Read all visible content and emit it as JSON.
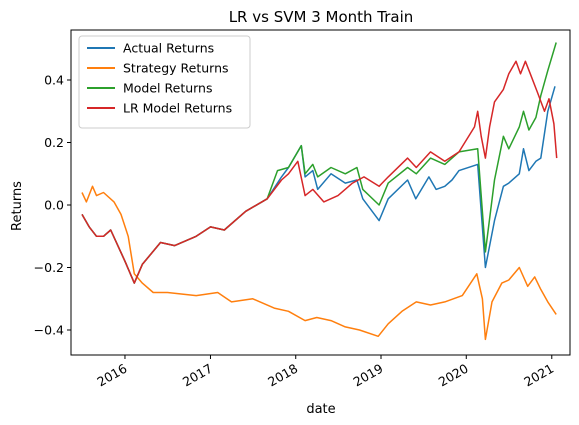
{
  "chart_data": {
    "type": "line",
    "title": "LR vs SVM 3 Month Train",
    "xlabel": "date",
    "ylabel": "Returns",
    "xlim": [
      "2015-05-15",
      "2021-03-20"
    ],
    "ylim": [
      -0.48,
      0.56
    ],
    "x_ticks": [
      "2016",
      "2017",
      "2018",
      "2019",
      "2020",
      "2021"
    ],
    "y_ticks": [
      -0.4,
      -0.2,
      0.0,
      0.2,
      0.4
    ],
    "y_tick_labels": [
      "−0.4",
      "−0.2",
      "0.0",
      "0.2",
      "0.4"
    ],
    "grid": false,
    "legend": "upper-left",
    "series": [
      {
        "name": "Actual Returns",
        "color": "#1f77b4",
        "points": [
          [
            "2015-07-01",
            -0.03
          ],
          [
            "2015-08-01",
            -0.07
          ],
          [
            "2015-09-01",
            -0.1
          ],
          [
            "2015-10-01",
            -0.1
          ],
          [
            "2015-11-01",
            -0.08
          ],
          [
            "2016-01-01",
            -0.18
          ],
          [
            "2016-02-10",
            -0.25
          ],
          [
            "2016-03-15",
            -0.19
          ],
          [
            "2016-06-01",
            -0.12
          ],
          [
            "2016-08-01",
            -0.13
          ],
          [
            "2016-11-01",
            -0.1
          ],
          [
            "2017-01-01",
            -0.07
          ],
          [
            "2017-03-01",
            -0.08
          ],
          [
            "2017-06-01",
            -0.02
          ],
          [
            "2017-09-01",
            0.02
          ],
          [
            "2017-11-01",
            0.09
          ],
          [
            "2017-12-01",
            0.12
          ],
          [
            "2018-01-25",
            0.19
          ],
          [
            "2018-02-10",
            0.09
          ],
          [
            "2018-03-15",
            0.11
          ],
          [
            "2018-04-05",
            0.05
          ],
          [
            "2018-06-01",
            0.1
          ],
          [
            "2018-08-01",
            0.07
          ],
          [
            "2018-09-20",
            0.08
          ],
          [
            "2018-10-15",
            0.02
          ],
          [
            "2018-12-24",
            -0.05
          ],
          [
            "2019-02-01",
            0.02
          ],
          [
            "2019-04-25",
            0.08
          ],
          [
            "2019-05-30",
            0.02
          ],
          [
            "2019-07-25",
            0.09
          ],
          [
            "2019-08-25",
            0.05
          ],
          [
            "2019-10-01",
            0.06
          ],
          [
            "2019-11-01",
            0.08
          ],
          [
            "2019-12-01",
            0.11
          ],
          [
            "2020-02-19",
            0.13
          ],
          [
            "2020-03-23",
            -0.2
          ],
          [
            "2020-05-01",
            -0.05
          ],
          [
            "2020-06-08",
            0.06
          ],
          [
            "2020-07-01",
            0.07
          ],
          [
            "2020-08-15",
            0.1
          ],
          [
            "2020-09-02",
            0.18
          ],
          [
            "2020-09-25",
            0.11
          ],
          [
            "2020-10-25",
            0.14
          ],
          [
            "2020-11-15",
            0.15
          ],
          [
            "2020-12-15",
            0.3
          ],
          [
            "2021-01-15",
            0.38
          ]
        ]
      },
      {
        "name": "Strategy Returns",
        "color": "#ff7f0e",
        "points": [
          [
            "2015-07-01",
            0.04
          ],
          [
            "2015-07-20",
            0.01
          ],
          [
            "2015-08-15",
            0.06
          ],
          [
            "2015-09-01",
            0.03
          ],
          [
            "2015-10-01",
            0.04
          ],
          [
            "2015-11-15",
            0.01
          ],
          [
            "2015-12-15",
            -0.03
          ],
          [
            "2016-01-15",
            -0.1
          ],
          [
            "2016-02-10",
            -0.22
          ],
          [
            "2016-03-15",
            -0.25
          ],
          [
            "2016-05-01",
            -0.28
          ],
          [
            "2016-07-01",
            -0.28
          ],
          [
            "2016-11-01",
            -0.29
          ],
          [
            "2017-02-01",
            -0.28
          ],
          [
            "2017-04-01",
            -0.31
          ],
          [
            "2017-07-01",
            -0.3
          ],
          [
            "2017-10-01",
            -0.33
          ],
          [
            "2017-12-01",
            -0.34
          ],
          [
            "2018-02-10",
            -0.37
          ],
          [
            "2018-04-01",
            -0.36
          ],
          [
            "2018-06-01",
            -0.37
          ],
          [
            "2018-08-01",
            -0.39
          ],
          [
            "2018-10-01",
            -0.4
          ],
          [
            "2018-12-20",
            -0.42
          ],
          [
            "2019-02-01",
            -0.38
          ],
          [
            "2019-04-01",
            -0.34
          ],
          [
            "2019-06-01",
            -0.31
          ],
          [
            "2019-08-01",
            -0.32
          ],
          [
            "2019-10-01",
            -0.31
          ],
          [
            "2019-12-15",
            -0.29
          ],
          [
            "2020-02-15",
            -0.22
          ],
          [
            "2020-03-10",
            -0.3
          ],
          [
            "2020-03-23",
            -0.43
          ],
          [
            "2020-04-20",
            -0.31
          ],
          [
            "2020-06-01",
            -0.25
          ],
          [
            "2020-07-01",
            -0.24
          ],
          [
            "2020-08-15",
            -0.2
          ],
          [
            "2020-09-20",
            -0.26
          ],
          [
            "2020-10-20",
            -0.23
          ],
          [
            "2020-11-15",
            -0.27
          ],
          [
            "2020-12-15",
            -0.31
          ],
          [
            "2021-01-20",
            -0.35
          ]
        ]
      },
      {
        "name": "Model Returns",
        "color": "#2ca02c",
        "points": [
          [
            "2015-07-01",
            -0.03
          ],
          [
            "2015-08-01",
            -0.07
          ],
          [
            "2015-09-01",
            -0.1
          ],
          [
            "2015-10-01",
            -0.1
          ],
          [
            "2015-11-01",
            -0.08
          ],
          [
            "2016-01-01",
            -0.18
          ],
          [
            "2016-02-10",
            -0.25
          ],
          [
            "2016-03-15",
            -0.19
          ],
          [
            "2016-06-01",
            -0.12
          ],
          [
            "2016-08-01",
            -0.13
          ],
          [
            "2016-11-01",
            -0.1
          ],
          [
            "2017-01-01",
            -0.07
          ],
          [
            "2017-03-01",
            -0.08
          ],
          [
            "2017-06-01",
            -0.02
          ],
          [
            "2017-09-01",
            0.02
          ],
          [
            "2017-10-15",
            0.11
          ],
          [
            "2017-12-01",
            0.12
          ],
          [
            "2018-01-25",
            0.19
          ],
          [
            "2018-02-10",
            0.1
          ],
          [
            "2018-03-15",
            0.13
          ],
          [
            "2018-04-05",
            0.09
          ],
          [
            "2018-06-01",
            0.12
          ],
          [
            "2018-08-01",
            0.1
          ],
          [
            "2018-09-20",
            0.12
          ],
          [
            "2018-10-15",
            0.05
          ],
          [
            "2018-12-24",
            0.0
          ],
          [
            "2019-02-01",
            0.07
          ],
          [
            "2019-04-25",
            0.12
          ],
          [
            "2019-06-01",
            0.1
          ],
          [
            "2019-08-01",
            0.15
          ],
          [
            "2019-10-01",
            0.13
          ],
          [
            "2019-12-01",
            0.17
          ],
          [
            "2020-02-19",
            0.18
          ],
          [
            "2020-03-23",
            -0.15
          ],
          [
            "2020-05-01",
            0.08
          ],
          [
            "2020-06-08",
            0.22
          ],
          [
            "2020-07-01",
            0.18
          ],
          [
            "2020-08-15",
            0.25
          ],
          [
            "2020-09-02",
            0.3
          ],
          [
            "2020-09-25",
            0.24
          ],
          [
            "2020-10-25",
            0.28
          ],
          [
            "2020-11-15",
            0.35
          ],
          [
            "2020-12-15",
            0.43
          ],
          [
            "2021-01-20",
            0.52
          ]
        ]
      },
      {
        "name": "LR Model Returns",
        "color": "#d62728",
        "points": [
          [
            "2015-07-01",
            -0.03
          ],
          [
            "2015-08-01",
            -0.07
          ],
          [
            "2015-09-01",
            -0.1
          ],
          [
            "2015-10-01",
            -0.1
          ],
          [
            "2015-11-01",
            -0.08
          ],
          [
            "2016-01-01",
            -0.18
          ],
          [
            "2016-02-10",
            -0.25
          ],
          [
            "2016-03-15",
            -0.19
          ],
          [
            "2016-06-01",
            -0.12
          ],
          [
            "2016-08-01",
            -0.13
          ],
          [
            "2016-11-01",
            -0.1
          ],
          [
            "2017-01-01",
            -0.07
          ],
          [
            "2017-03-01",
            -0.08
          ],
          [
            "2017-06-01",
            -0.02
          ],
          [
            "2017-09-01",
            0.02
          ],
          [
            "2017-11-01",
            0.08
          ],
          [
            "2017-12-01",
            0.1
          ],
          [
            "2018-01-10",
            0.14
          ],
          [
            "2018-02-10",
            0.03
          ],
          [
            "2018-03-15",
            0.05
          ],
          [
            "2018-05-01",
            0.01
          ],
          [
            "2018-07-01",
            0.03
          ],
          [
            "2018-09-01",
            0.07
          ],
          [
            "2018-10-20",
            0.09
          ],
          [
            "2018-12-24",
            0.06
          ],
          [
            "2019-02-01",
            0.09
          ],
          [
            "2019-04-25",
            0.15
          ],
          [
            "2019-06-01",
            0.12
          ],
          [
            "2019-08-01",
            0.17
          ],
          [
            "2019-10-01",
            0.14
          ],
          [
            "2019-12-01",
            0.17
          ],
          [
            "2020-02-05",
            0.25
          ],
          [
            "2020-02-19",
            0.3
          ],
          [
            "2020-03-05",
            0.22
          ],
          [
            "2020-03-23",
            0.15
          ],
          [
            "2020-04-10",
            0.25
          ],
          [
            "2020-05-01",
            0.33
          ],
          [
            "2020-06-08",
            0.37
          ],
          [
            "2020-07-01",
            0.42
          ],
          [
            "2020-08-01",
            0.46
          ],
          [
            "2020-08-20",
            0.42
          ],
          [
            "2020-09-10",
            0.46
          ],
          [
            "2020-10-01",
            0.42
          ],
          [
            "2020-11-01",
            0.36
          ],
          [
            "2020-12-01",
            0.3
          ],
          [
            "2020-12-20",
            0.34
          ],
          [
            "2021-01-10",
            0.26
          ],
          [
            "2021-01-22",
            0.15
          ]
        ]
      }
    ]
  }
}
